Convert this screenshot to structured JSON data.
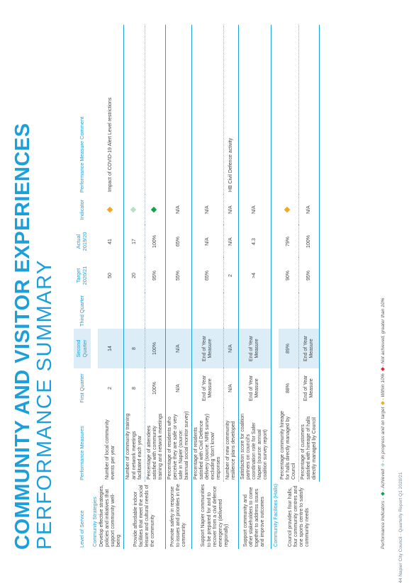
{
  "page": {
    "title": "COMMUNITY AND VISITOR EXPERIENCES",
    "subtitle": "PERFORMANCE SUMMARY",
    "footer": "44     Napier City Council - Quarterly Report Q1 2020/21"
  },
  "colors": {
    "accent": "#1d9fd9",
    "highlight": "#dcedf8",
    "achieved": "#13a24a",
    "in_progress": "#b5e2c5",
    "within": "#f5a623",
    "not_achieved": "#e8202a"
  },
  "table": {
    "headers": {
      "level_of_service": "Level of Service",
      "performance_measures": "Performance Measures",
      "first_quarter": "First Quarter",
      "second_quarter": "Second Quarter",
      "third_quarter": "Third Quarter",
      "target": "Target 2020/21",
      "actual": "Actual 2019/20",
      "indicator": "Indicator",
      "comment": "Performance Measure Comment"
    },
    "sections": [
      {
        "name": "Community Strategies",
        "rows": [
          {
            "service": "Develop effective strategies, policies and initiatives that support community well-being",
            "measures": [
              {
                "measure": "Number of local community events per year",
                "q1": "2",
                "q2": "14",
                "q3": "",
                "target": "50",
                "actual": "41",
                "indicator": "within",
                "comment": "Impact of COVID-19 Alert Level restrictions"
              }
            ]
          },
          {
            "service": "Provide affordable indoor facilities that meet the social leisure and cultural needs of the community",
            "measures": [
              {
                "measure": "Number of community training and network meetings facilitated each year",
                "q1": "8",
                "q2": "8",
                "q3": "",
                "target": "20",
                "actual": "17",
                "indicator": "in_progress",
                "comment": ""
              },
              {
                "measure": "Percentage of attendees satisfied with community training and network meetings",
                "q1": "100%",
                "q2": "100%",
                "q3": "",
                "target": "95%",
                "actual": "100%",
                "indicator": "achieved",
                "comment": ""
              }
            ]
          },
          {
            "service": "Promote safety in response to issues and priorities in the community",
            "measures": [
              {
                "measure": "Percentage of residents who perceive they are safe or very safe in Napier (source: biannual social monitor survey)",
                "q1": "N/A",
                "q2": "N/A",
                "q3": "",
                "target": "55%",
                "actual": "65%",
                "indicator": "N/A",
                "comment": ""
              }
            ]
          },
          {
            "service": "Support Napier communities to be prepared for and to recover from a civil defence emergency (delivered regionally)",
            "measures": [
              {
                "measure": "Percentage of residents satisfied with Civil Defence delivery (source: NRB survey) excluding 'don't know' responses",
                "q1": "End of Year Measure",
                "q2": "End of Year Measure",
                "q3": "",
                "target": "65%",
                "actual": "N/A",
                "indicator": "N/A",
                "comment": ""
              },
              {
                "measure": "Number of new community resilience plans developed",
                "q1": "N/A",
                "q2": "N/A",
                "q3": "",
                "target": "2",
                "actual": "N/A",
                "indicator": "N/A",
                "comment": "HB Civil Defence activity"
              }
            ]
          },
          {
            "service": "Support community and other stakeholders to come together to address issues and improve outcomes",
            "measures": [
              {
                "measure": "Satisfaction score for coalition partners on council's coordination role for Safer Napier (source: annual coalition survey report)",
                "q1": "End of Year Measure",
                "q2": "End of Year Measure",
                "q3": "",
                "target": ">4",
                "actual": "4.3",
                "indicator": "N/A",
                "comment": ""
              }
            ]
          }
        ]
      },
      {
        "name": "Community Facilities (Halls)",
        "rows": [
          {
            "service": "Council provides four halls, four community centres and one sports centre to satisfy community needs",
            "measures": [
              {
                "measure": "Percentage community hireage for halls directly managed by Council",
                "q1": "88%",
                "q2": "89%",
                "q3": "",
                "target": "90%",
                "actual": "79%",
                "indicator": "within",
                "comment": ""
              },
              {
                "measure": "Percentage of customers satisfied with hireage of halls directly managed by Council",
                "q1": "End of Year Measure",
                "q2": "End of Year Measure",
                "q3": "",
                "target": "95%",
                "actual": "100%",
                "indicator": "N/A",
                "comment": ""
              }
            ]
          }
        ]
      }
    ]
  },
  "legend": {
    "prefix": "Performance Indicators -",
    "achieved": "- Achieved",
    "in_progress": "- In progress and on target",
    "within": "- Within 10%",
    "not_achieved": "- Not achieved, greater than 10%"
  }
}
